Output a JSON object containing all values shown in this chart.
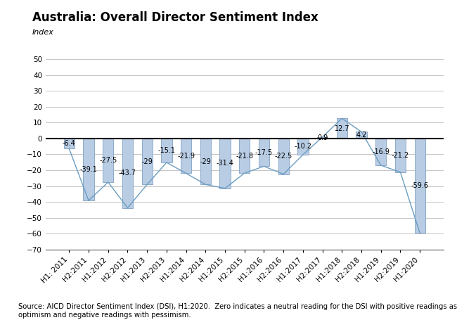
{
  "title": "Australia: Overall Director Sentiment Index",
  "ylabel": "Index",
  "categories": [
    "H1: 2011",
    "H2:2011",
    "H1:2012",
    "H2:2012",
    "H1:2013",
    "H2:2013",
    "H1:2014",
    "H2:2014",
    "H1:2015",
    "H2:2015",
    "H1:2016",
    "H2:2016",
    "H1:2017",
    "H2:2017",
    "H1:2018",
    "H2:2018",
    "H1:2019",
    "H2:2019",
    "H1:2020"
  ],
  "values": [
    -6.4,
    -39.1,
    -27.5,
    -43.7,
    -29.0,
    -15.1,
    -21.9,
    -29.0,
    -31.4,
    -21.8,
    -17.5,
    -22.5,
    -10.2,
    0.9,
    12.7,
    4.2,
    -16.9,
    -21.2,
    -59.6
  ],
  "ylim": [
    -70,
    55
  ],
  "yticks": [
    -70,
    -60,
    -50,
    -40,
    -30,
    -20,
    -10,
    0,
    10,
    20,
    30,
    40,
    50
  ],
  "bar_color": "#B8CCE4",
  "bar_edge_color": "#8CAAC8",
  "line_color": "#6B9DC2",
  "bg_color": "#FFFFFF",
  "grid_color": "#BBBBBB",
  "source_text": "Source: AICD Director Sentiment Index (DSI), H1:2020.  Zero indicates a neutral reading for the DSI with positive readings associated with\noptimism and negative readings with pessimism.",
  "title_fontsize": 12,
  "tick_fontsize": 7.5,
  "source_fontsize": 7.2,
  "label_fontsize": 7
}
